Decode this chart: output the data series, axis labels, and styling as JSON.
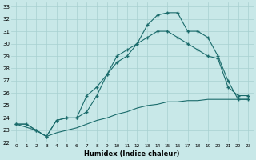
{
  "xlabel": "Humidex (Indice chaleur)",
  "xlim": [
    -0.5,
    23.5
  ],
  "ylim": [
    22,
    33.3
  ],
  "yticks": [
    22,
    23,
    24,
    25,
    26,
    27,
    28,
    29,
    30,
    31,
    32,
    33
  ],
  "xticks": [
    0,
    1,
    2,
    3,
    4,
    5,
    6,
    7,
    8,
    9,
    10,
    11,
    12,
    13,
    14,
    15,
    16,
    17,
    18,
    19,
    20,
    21,
    22,
    23
  ],
  "bg_color": "#c8e8e8",
  "grid_color": "#a8d0d0",
  "line_color": "#1a6b6b",
  "line1_x": [
    0,
    1,
    2,
    3,
    4,
    5,
    6,
    7,
    8,
    9,
    10,
    11,
    12,
    13,
    14,
    15,
    16,
    17,
    18,
    19,
    20,
    21,
    22,
    23
  ],
  "line1_y": [
    23.5,
    23.5,
    23.0,
    22.5,
    23.8,
    24.0,
    24.0,
    24.5,
    25.8,
    27.5,
    29.0,
    29.5,
    30.0,
    31.5,
    32.3,
    32.5,
    32.5,
    31.0,
    31.0,
    30.5,
    29.0,
    27.0,
    25.5,
    25.5
  ],
  "line2_x": [
    0,
    2,
    3,
    4,
    5,
    6,
    7,
    8,
    9,
    10,
    11,
    12,
    13,
    14,
    15,
    16,
    17,
    18,
    19,
    20,
    21,
    22,
    23
  ],
  "line2_y": [
    23.5,
    23.0,
    22.5,
    23.8,
    24.0,
    24.0,
    25.8,
    26.5,
    27.5,
    28.5,
    29.0,
    30.0,
    30.5,
    31.0,
    31.0,
    30.5,
    30.0,
    29.5,
    29.0,
    28.8,
    26.5,
    25.8,
    25.8
  ],
  "line3_x": [
    0,
    1,
    2,
    3,
    4,
    5,
    6,
    7,
    8,
    9,
    10,
    11,
    12,
    13,
    14,
    15,
    16,
    17,
    18,
    19,
    20,
    21,
    22,
    23
  ],
  "line3_y": [
    23.5,
    23.5,
    23.0,
    22.5,
    22.8,
    23.0,
    23.2,
    23.5,
    23.8,
    24.0,
    24.3,
    24.5,
    24.8,
    25.0,
    25.1,
    25.3,
    25.3,
    25.4,
    25.4,
    25.5,
    25.5,
    25.5,
    25.5,
    25.5
  ]
}
